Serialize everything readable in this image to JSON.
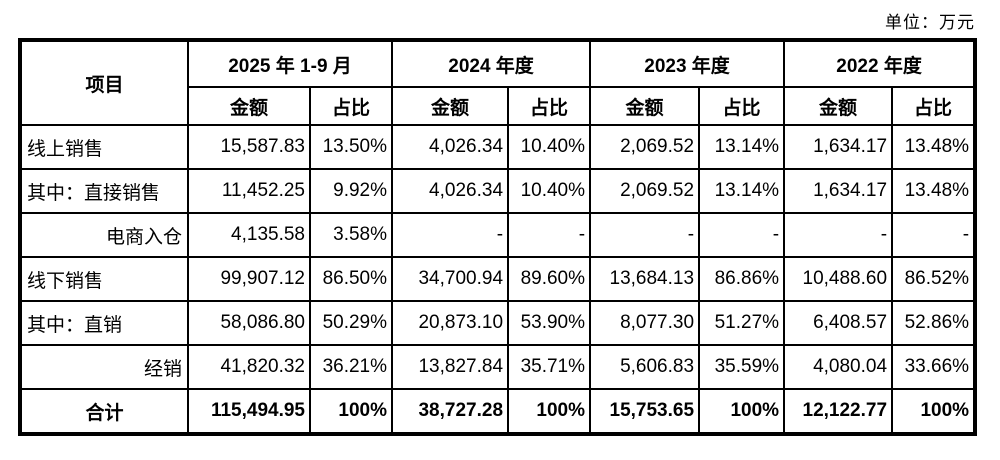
{
  "unit_label": "单位：万元",
  "table": {
    "item_header": "项目",
    "col_groups": [
      {
        "label": "2025 年 1-9 月",
        "amount_label": "金额",
        "ratio_label": "占比"
      },
      {
        "label": "2024 年度",
        "amount_label": "金额",
        "ratio_label": "占比"
      },
      {
        "label": "2023 年度",
        "amount_label": "金额",
        "ratio_label": "占比"
      },
      {
        "label": "2022 年度",
        "amount_label": "金额",
        "ratio_label": "占比"
      }
    ],
    "rows": [
      {
        "label": "线上销售",
        "label_align": "left",
        "bold": false,
        "values": [
          "15,587.83",
          "13.50%",
          "4,026.34",
          "10.40%",
          "2,069.52",
          "13.14%",
          "1,634.17",
          "13.48%"
        ]
      },
      {
        "label": "其中：直接销售",
        "label_align": "left",
        "bold": false,
        "values": [
          "11,452.25",
          "9.92%",
          "4,026.34",
          "10.40%",
          "2,069.52",
          "13.14%",
          "1,634.17",
          "13.48%"
        ]
      },
      {
        "label": "电商入仓",
        "label_align": "right",
        "bold": false,
        "values": [
          "4,135.58",
          "3.58%",
          "-",
          "-",
          "-",
          "-",
          "-",
          "-"
        ]
      },
      {
        "label": "线下销售",
        "label_align": "left",
        "bold": false,
        "values": [
          "99,907.12",
          "86.50%",
          "34,700.94",
          "89.60%",
          "13,684.13",
          "86.86%",
          "10,488.60",
          "86.52%"
        ]
      },
      {
        "label": "其中：直销",
        "label_align": "left",
        "bold": false,
        "values": [
          "58,086.80",
          "50.29%",
          "20,873.10",
          "53.90%",
          "8,077.30",
          "51.27%",
          "6,408.57",
          "52.86%"
        ]
      },
      {
        "label": "经销",
        "label_align": "right",
        "bold": false,
        "values": [
          "41,820.32",
          "36.21%",
          "13,827.84",
          "35.71%",
          "5,606.83",
          "35.59%",
          "4,080.04",
          "33.66%"
        ]
      },
      {
        "label": "合计",
        "label_align": "center",
        "bold": true,
        "values": [
          "115,494.95",
          "100%",
          "38,727.28",
          "100%",
          "15,753.65",
          "100%",
          "12,122.77",
          "100%"
        ]
      }
    ]
  },
  "colors": {
    "background": "#ffffff",
    "border": "#000000",
    "text": "#000000"
  }
}
